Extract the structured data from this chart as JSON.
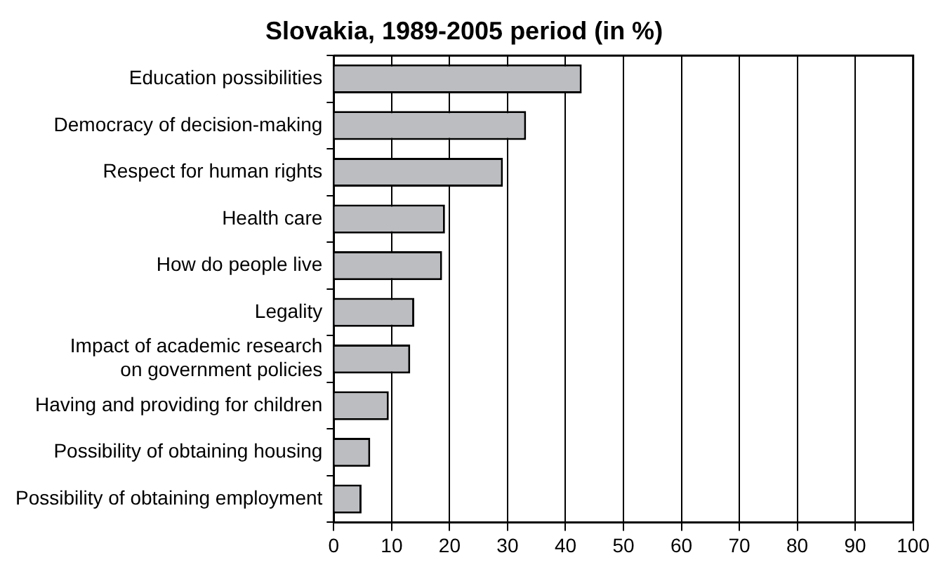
{
  "chart_data": {
    "type": "bar",
    "orientation": "horizontal",
    "title": "Slovakia, 1989-2005 period (in %)",
    "categories": [
      "Education possibilities",
      "Democracy of decision-making",
      "Respect for human rights",
      "Health care",
      "How do people live",
      "Legality",
      "Impact of academic research\non government policies",
      "Having and providing for children",
      "Possibility of obtaining housing",
      "Possibility of obtaining employment"
    ],
    "values": [
      42.8,
      33.2,
      29.2,
      19.2,
      18.7,
      13.9,
      13.2,
      9.5,
      6.3,
      4.8
    ],
    "color": "#bbbdc0",
    "xlim": [
      0,
      100
    ],
    "xticks": [
      0,
      10,
      20,
      30,
      40,
      50,
      60,
      70,
      80,
      90,
      100
    ],
    "grid": "x",
    "legend": false
  }
}
